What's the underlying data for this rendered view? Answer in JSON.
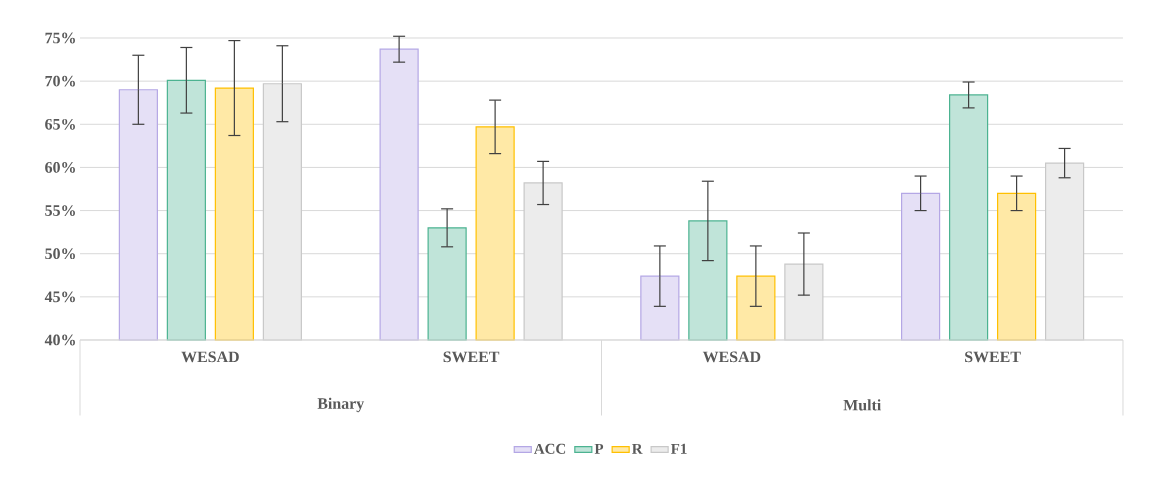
{
  "chart_data": {
    "type": "bar",
    "categories": [
      "WESAD",
      "SWEET",
      "WESAD",
      "SWEET"
    ],
    "series": [
      {
        "name": "ACC",
        "color": "#b4a7e5",
        "values": [
          69.0,
          73.7,
          47.4,
          57.0
        ],
        "errors": [
          4.0,
          1.5,
          3.5,
          2.0
        ]
      },
      {
        "name": "P",
        "color": "#4cb391",
        "values": [
          70.1,
          53.0,
          53.8,
          68.4
        ],
        "errors": [
          3.8,
          2.2,
          4.6,
          1.5
        ]
      },
      {
        "name": "R",
        "color": "#ffc000",
        "values": [
          69.2,
          64.7,
          47.4,
          57.0
        ],
        "errors": [
          5.5,
          3.1,
          3.5,
          2.0
        ]
      },
      {
        "name": "F1",
        "color": "#c8c8c8",
        "values": [
          69.7,
          58.2,
          48.8,
          60.5
        ],
        "errors": [
          4.4,
          2.5,
          3.6,
          1.7
        ]
      }
    ],
    "annotations": [
      "Binary",
      "Multi"
    ],
    "ylim": [
      40,
      75
    ],
    "yticks": [
      {
        "value": 40,
        "label": "40%"
      },
      {
        "value": 45,
        "label": "45%"
      },
      {
        "value": 50,
        "label": "50%"
      },
      {
        "value": 55,
        "label": "55%"
      },
      {
        "value": 60,
        "label": "60%"
      },
      {
        "value": 65,
        "label": "65%"
      },
      {
        "value": 70,
        "label": "70%"
      },
      {
        "value": 75,
        "label": "75%"
      }
    ],
    "grid": "y",
    "legend": "bottom"
  }
}
